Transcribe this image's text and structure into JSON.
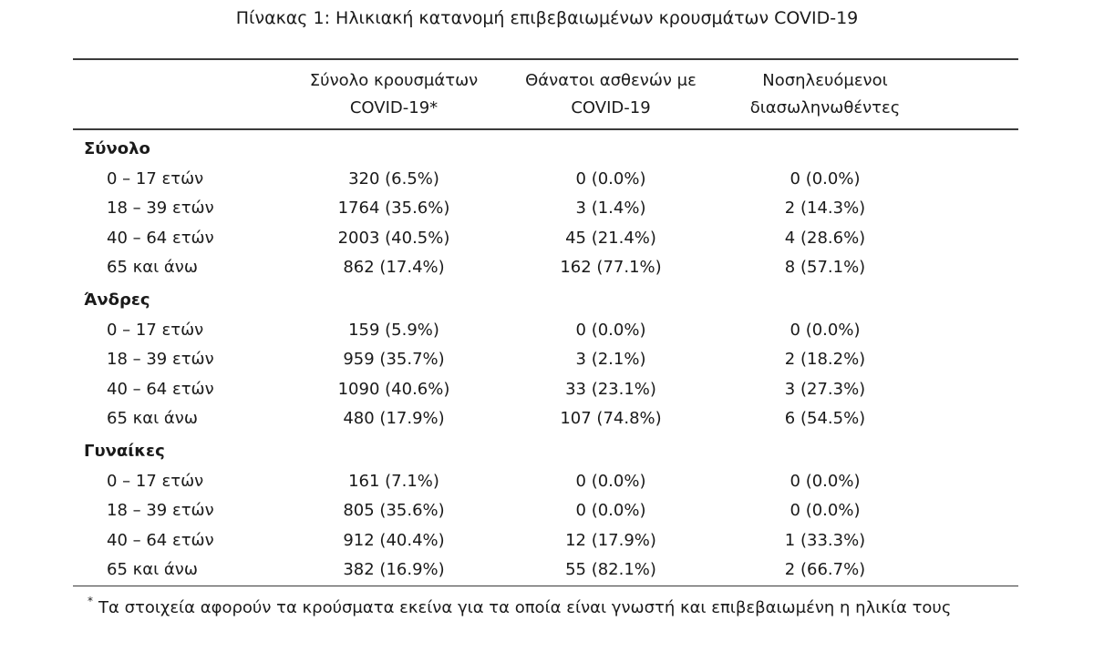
{
  "title": "Πίνακας 1: Ηλικιακή κατανομή επιβεβαιωμένων κρουσμάτων COVID-19",
  "columns": [
    {
      "line1": "Σύνολο κρουσμάτων",
      "line2": "COVID-19*"
    },
    {
      "line1": "Θάνατοι ασθενών με",
      "line2": "COVID-19"
    },
    {
      "line1": "Νοσηλευόμενοι",
      "line2": "διασωληνωθέντες"
    }
  ],
  "groups": [
    {
      "name": "Σύνολο",
      "rows": [
        {
          "age": "0 – 17 ετών",
          "cases": "320 (6.5%)",
          "deaths": "0 (0.0%)",
          "intubated": "0 (0.0%)"
        },
        {
          "age": "18 – 39 ετών",
          "cases": "1764 (35.6%)",
          "deaths": "3 (1.4%)",
          "intubated": "2 (14.3%)"
        },
        {
          "age": "40 – 64 ετών",
          "cases": "2003 (40.5%)",
          "deaths": "45 (21.4%)",
          "intubated": "4 (28.6%)"
        },
        {
          "age": "65 και άνω",
          "cases": "862 (17.4%)",
          "deaths": "162 (77.1%)",
          "intubated": "8 (57.1%)"
        }
      ]
    },
    {
      "name": "Άνδρες",
      "rows": [
        {
          "age": "0 – 17 ετών",
          "cases": "159 (5.9%)",
          "deaths": "0 (0.0%)",
          "intubated": "0 (0.0%)"
        },
        {
          "age": "18 – 39 ετών",
          "cases": "959 (35.7%)",
          "deaths": "3 (2.1%)",
          "intubated": "2 (18.2%)"
        },
        {
          "age": "40 – 64 ετών",
          "cases": "1090 (40.6%)",
          "deaths": "33 (23.1%)",
          "intubated": "3 (27.3%)"
        },
        {
          "age": "65 και άνω",
          "cases": "480 (17.9%)",
          "deaths": "107 (74.8%)",
          "intubated": "6 (54.5%)"
        }
      ]
    },
    {
      "name": "Γυναίκες",
      "rows": [
        {
          "age": "0 – 17 ετών",
          "cases": "161 (7.1%)",
          "deaths": "0 (0.0%)",
          "intubated": "0 (0.0%)"
        },
        {
          "age": "18 – 39 ετών",
          "cases": "805 (35.6%)",
          "deaths": "0 (0.0%)",
          "intubated": "0 (0.0%)"
        },
        {
          "age": "40 – 64 ετών",
          "cases": "912 (40.4%)",
          "deaths": "12 (17.9%)",
          "intubated": "1 (33.3%)"
        },
        {
          "age": "65 και άνω",
          "cases": "382 (16.9%)",
          "deaths": "55 (82.1%)",
          "intubated": "2 (66.7%)"
        }
      ]
    }
  ],
  "footnote": {
    "marker": "*",
    "text": "Τα στοιχεία αφορούν τα κρούσματα εκείνα για τα οποία είναι γνωστή και επιβεβαιωμένη η ηλικία τους"
  }
}
